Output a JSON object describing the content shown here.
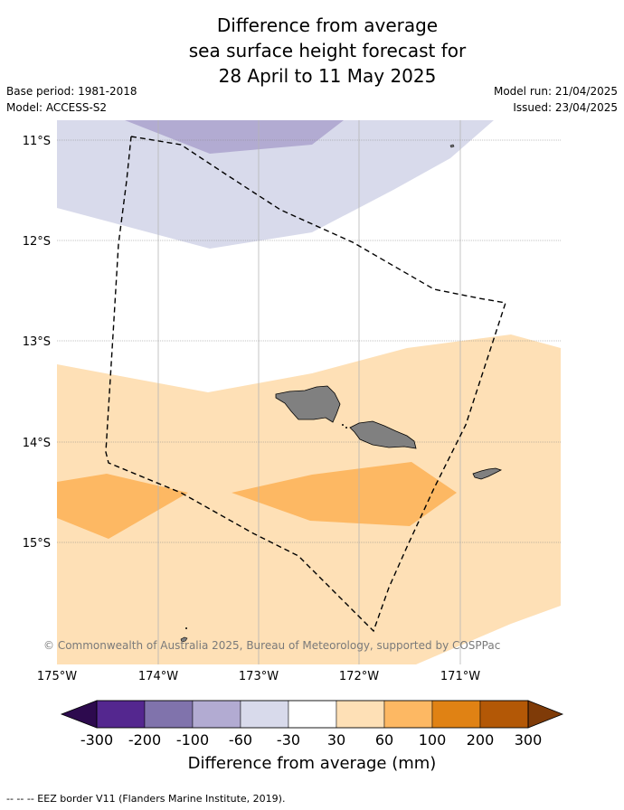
{
  "title": {
    "line1": "Difference from average",
    "line2": "sea surface height forecast for",
    "line3": "28 April to 11 May 2025"
  },
  "meta": {
    "base_period": "Base period: 1981-2018",
    "model": "Model: ACCESS-S2",
    "model_run": "Model run: 21/04/2025",
    "issued": "Issued: 23/04/2025"
  },
  "map": {
    "lat_labels": [
      "11°S",
      "12°S",
      "13°S",
      "14°S",
      "15°S"
    ],
    "lon_labels": [
      "175°W",
      "174°W",
      "173°W",
      "172°W",
      "171°W"
    ],
    "copyright": "© Commonwealth of Australia 2025, Bureau of Meteorology, supported by COSPPac"
  },
  "colorbar": {
    "ticks": [
      "-300",
      "-200",
      "-100",
      "-60",
      "-30",
      "30",
      "60",
      "100",
      "200",
      "300"
    ],
    "colors": [
      "#2d0a4e",
      "#54278f",
      "#8073ac",
      "#b2abd2",
      "#d8daeb",
      "#ffffff",
      "#fee0b6",
      "#fdb863",
      "#e08214",
      "#b35806",
      "#7f3b08"
    ],
    "title": "Difference from average (mm)"
  },
  "footer": {
    "legend_text": "-- -- -- EEZ border V11 (Flanders Marine Institute, 2019)."
  }
}
